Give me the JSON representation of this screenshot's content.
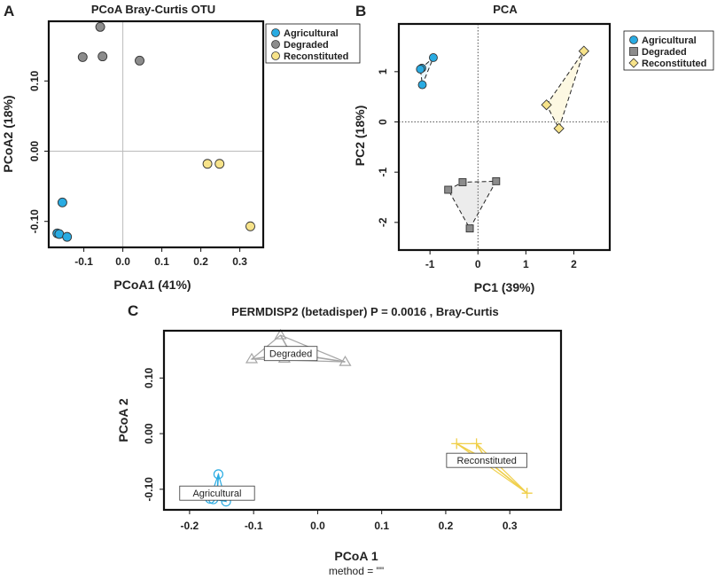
{
  "panels": {
    "a": {
      "letter": "A"
    },
    "b": {
      "letter": "B"
    },
    "c": {
      "letter": "C"
    }
  },
  "colors": {
    "agricultural": "#29abe2",
    "degraded": "#8c8c8c",
    "reconstituted": "#f7e38a",
    "degraded_line": "#a6a6a6",
    "reconstituted_line": "#f0cf4a"
  },
  "chart_data": [
    {
      "id": "A",
      "type": "scatter",
      "title": "PCoA Bray-Curtis OTU",
      "xlabel": "PCoA1 (41%)",
      "ylabel": "PCoA2 (18%)",
      "xlim": [
        -0.19,
        0.36
      ],
      "ylim": [
        -0.137,
        0.185
      ],
      "xticks": [
        -0.1,
        0.0,
        0.1,
        0.2,
        0.3
      ],
      "xtick_labels": [
        "-0.1",
        "0.0",
        "0.1",
        "0.2",
        "0.3"
      ],
      "yticks": [
        -0.1,
        0.0,
        0.1
      ],
      "ytick_labels": [
        "-0.10",
        "0.00",
        "0.10"
      ],
      "reference_lines": {
        "x": 0,
        "y": 0
      },
      "legend": {
        "position": "top-right",
        "entries": [
          "Agricultural",
          "Degraded",
          "Reconstituted"
        ]
      },
      "series": [
        {
          "name": "Agricultural",
          "marker": "circle",
          "x": [
            -0.168,
            -0.163,
            -0.143,
            -0.155
          ],
          "y": [
            -0.117,
            -0.118,
            -0.122,
            -0.073
          ]
        },
        {
          "name": "Degraded",
          "marker": "circle",
          "x": [
            -0.058,
            -0.103,
            -0.052,
            0.043
          ],
          "y": [
            0.177,
            0.134,
            0.135,
            0.129
          ]
        },
        {
          "name": "Reconstituted",
          "marker": "circle",
          "x": [
            0.217,
            0.248,
            0.327
          ],
          "y": [
            -0.018,
            -0.018,
            -0.107
          ]
        }
      ]
    },
    {
      "id": "B",
      "type": "scatter",
      "title": "PCA",
      "xlabel": "PC1 (39%)",
      "ylabel": "PC2 (18%)",
      "xlim": [
        -1.65,
        2.75
      ],
      "ylim": [
        -2.55,
        1.95
      ],
      "xticks": [
        -1,
        0,
        1,
        2
      ],
      "xtick_labels": [
        "-1",
        "0",
        "1",
        "2"
      ],
      "yticks": [
        -2,
        -1,
        0,
        1
      ],
      "ytick_labels": [
        "-2",
        "-1",
        "0",
        "1"
      ],
      "reference_lines": {
        "x": 0,
        "y": 0
      },
      "hulls": "dashed convex hull per group",
      "legend": {
        "position": "outside-right",
        "entries": [
          "Agricultural",
          "Degraded",
          "Reconstituted"
        ]
      },
      "series": [
        {
          "name": "Agricultural",
          "marker": "circle",
          "x": [
            -0.93,
            -1.17,
            -1.2,
            -1.16
          ],
          "y": [
            1.28,
            1.07,
            1.05,
            0.74
          ]
        },
        {
          "name": "Degraded",
          "marker": "square",
          "x": [
            -0.62,
            -0.32,
            0.38,
            -0.17
          ],
          "y": [
            -1.35,
            -1.2,
            -1.18,
            -2.12
          ]
        },
        {
          "name": "Reconstituted",
          "marker": "diamond",
          "x": [
            2.21,
            1.43,
            1.69
          ],
          "y": [
            1.41,
            0.34,
            -0.13
          ]
        }
      ]
    },
    {
      "id": "C",
      "type": "scatter",
      "title": "PERMDISP2 (betadisper) P =  0.0016 , Bray-Curtis",
      "xlabel": "PCoA 1",
      "ylabel": "PCoA 2",
      "subtitle": "method = \"\"",
      "xlim": [
        -0.24,
        0.38
      ],
      "ylim": [
        -0.137,
        0.185
      ],
      "xticks": [
        -0.2,
        -0.1,
        0.0,
        0.1,
        0.2,
        0.3
      ],
      "xtick_labels": [
        "-0.2",
        "-0.1",
        "0.0",
        "0.1",
        "0.2",
        "0.3"
      ],
      "yticks": [
        -0.1,
        0.0,
        0.1
      ],
      "ytick_labels": [
        "-0.10",
        "0.00",
        "0.10"
      ],
      "spider_lines": "segments from each sample to group centroid",
      "series": [
        {
          "name": "Agricultural",
          "label": "Agricultural",
          "marker": "circle-open",
          "centroid": [
            -0.157,
            -0.107
          ],
          "x": [
            -0.168,
            -0.163,
            -0.143,
            -0.155
          ],
          "y": [
            -0.117,
            -0.118,
            -0.122,
            -0.073
          ]
        },
        {
          "name": "Degraded",
          "label": "Degraded",
          "marker": "triangle-open",
          "centroid": [
            -0.042,
            0.144
          ],
          "x": [
            -0.058,
            -0.103,
            -0.052,
            0.043
          ],
          "y": [
            0.177,
            0.134,
            0.135,
            0.129
          ]
        },
        {
          "name": "Reconstituted",
          "label": "Reconstituted",
          "marker": "plus",
          "centroid": [
            0.264,
            -0.048
          ],
          "x": [
            0.217,
            0.248,
            0.327
          ],
          "y": [
            -0.018,
            -0.018,
            -0.107
          ]
        }
      ]
    }
  ]
}
